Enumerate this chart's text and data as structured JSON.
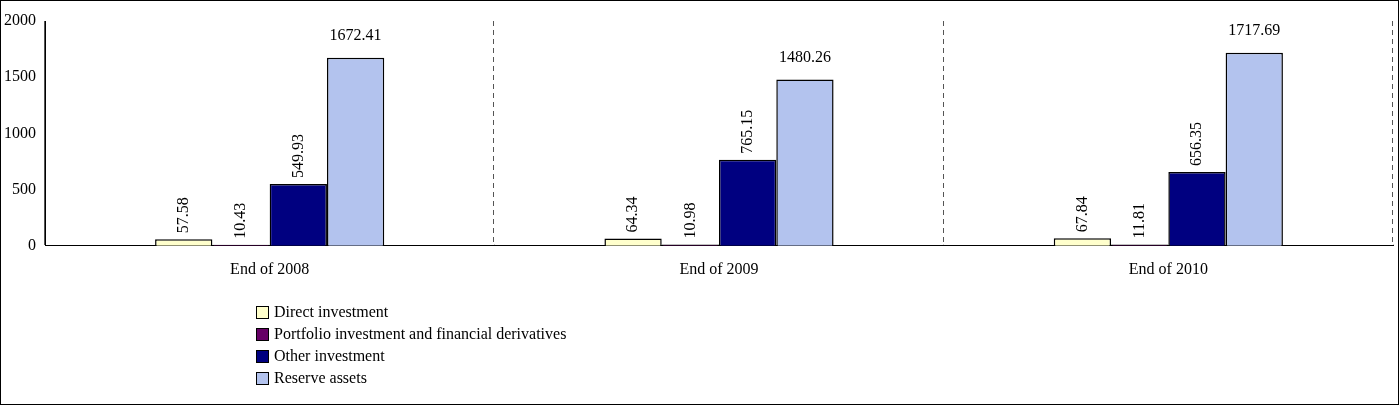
{
  "chart_data": {
    "type": "bar",
    "categories": [
      "End of 2008",
      "End of 2009",
      "End of 2010"
    ],
    "series": [
      {
        "name": "Direct investment",
        "color": "#ffffcc",
        "values": [
          57.58,
          64.34,
          67.84
        ]
      },
      {
        "name": "Portfolio investment and financial derivatives",
        "color": "#660066",
        "values": [
          10.43,
          10.98,
          11.81
        ]
      },
      {
        "name": "Other investment",
        "color": "#000080",
        "values": [
          549.93,
          765.15,
          656.35
        ]
      },
      {
        "name": "Reserve assets",
        "color": "#b3c3ee",
        "values": [
          1672.41,
          1480.26,
          1717.69
        ]
      }
    ],
    "ylim": [
      0,
      2000
    ],
    "yticks": [
      0,
      500,
      1000,
      1500,
      2000
    ],
    "grid": "x",
    "legend": "bottom",
    "data_labels": true
  }
}
